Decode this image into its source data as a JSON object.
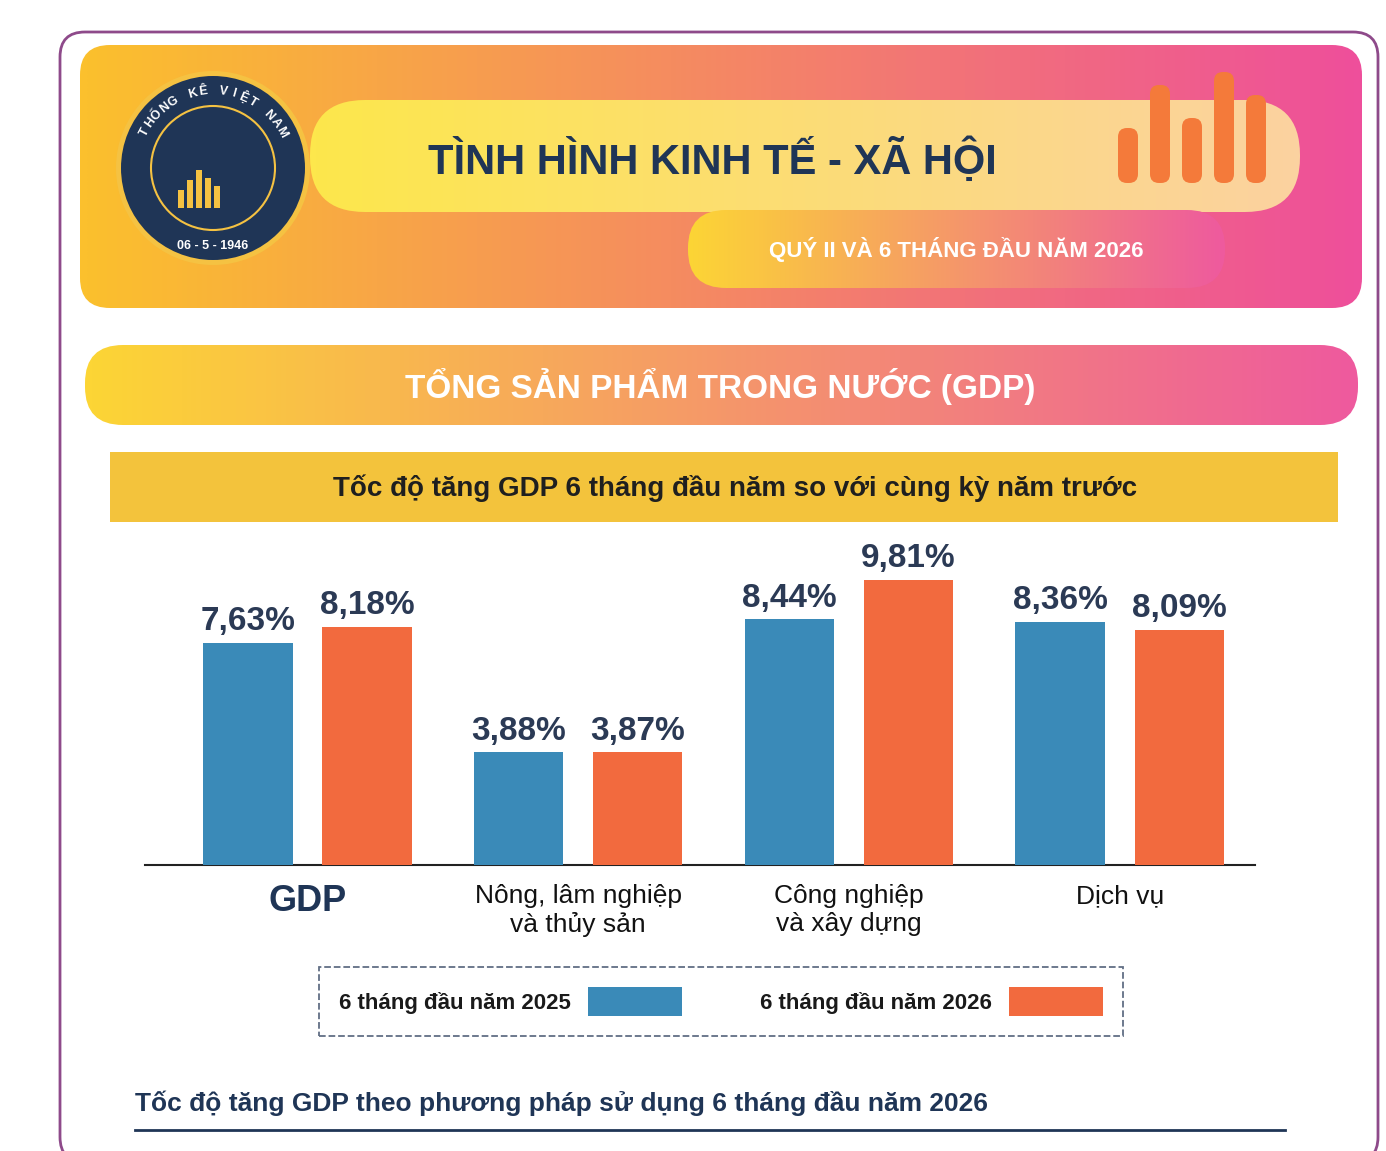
{
  "header": {
    "title": "TÌNH HÌNH KINH TẾ - XÃ HỘI",
    "subtitle": "QUÝ II VÀ 6 THÁNG ĐẦU NĂM 2026",
    "logo": {
      "ring_text": "THỐNG KÊ VIỆT NAM",
      "date": "06 - 5 - 1946"
    }
  },
  "section": {
    "title": "TỔNG SẢN PHẨM TRONG NƯỚC (GDP)"
  },
  "chart_data": {
    "type": "bar",
    "title": "Tốc độ tăng GDP 6 tháng đầu năm so với cùng kỳ năm trước",
    "categories": [
      "GDP",
      "Nông, lâm nghiệp\nvà thủy sản",
      "Công nghiệp\nvà xây dựng",
      "Dịch vụ"
    ],
    "series": [
      {
        "name": "6 tháng đầu năm 2025",
        "color": "#3a8ab8",
        "values": [
          7.63,
          3.88,
          8.44,
          8.36
        ],
        "value_labels": [
          "7,63%",
          "3,88%",
          "8,44%",
          "8,36%"
        ]
      },
      {
        "name": "6 tháng đầu năm 2026",
        "color": "#f26a3e",
        "values": [
          8.18,
          3.87,
          9.81,
          8.09
        ],
        "value_labels": [
          "8,18%",
          "3,87%",
          "9,81%",
          "8,09%"
        ]
      }
    ],
    "ylim": [
      0,
      11
    ],
    "yticks": [],
    "tick_labels": "x",
    "data_labels": true,
    "legend": "lower center",
    "grid": false
  },
  "footer": {
    "title": "Tốc độ tăng GDP theo phương pháp sử dụng 6 tháng đầu năm 2026"
  }
}
